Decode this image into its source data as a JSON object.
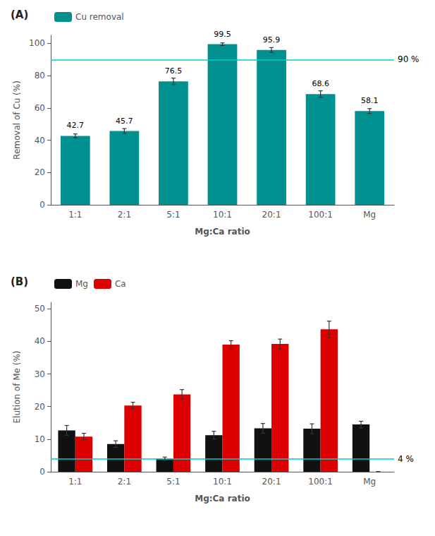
{
  "chart_data": [
    {
      "type": "bar",
      "title": "(A)",
      "categories": [
        "1:1",
        "2:1",
        "5:1",
        "10:1",
        "20:1",
        "100:1",
        "Mg"
      ],
      "series": [
        {
          "name": "Cu removal",
          "color": "#009090",
          "values": [
            42.7,
            45.7,
            76.5,
            99.5,
            95.9,
            68.6,
            58.1
          ],
          "errors": [
            1.2,
            1.5,
            2.0,
            0.8,
            1.5,
            2.0,
            1.5
          ]
        }
      ],
      "xlabel": "Mg:Ca ratio",
      "ylabel": "Removal of Cu (%)",
      "ylim": [
        0,
        105
      ],
      "yticks": [
        0,
        20,
        40,
        60,
        80,
        100
      ],
      "grid": false,
      "legend": "upper left",
      "data_labels": true,
      "annotations": [
        {
          "y": 90,
          "text": "90 %",
          "color": "#00CCCC"
        }
      ]
    },
    {
      "type": "bar",
      "title": "(B)",
      "categories": [
        "1:1",
        "2:1",
        "5:1",
        "10:1",
        "20:1",
        "100:1",
        "Mg"
      ],
      "series": [
        {
          "name": "Mg",
          "color": "#111111",
          "values": [
            12.7,
            8.5,
            4.0,
            11.2,
            13.3,
            13.2,
            14.5
          ],
          "errors": [
            1.5,
            1.0,
            0.5,
            1.2,
            1.5,
            1.5,
            1.0
          ]
        },
        {
          "name": "Ca",
          "color": "#DD0000",
          "values": [
            10.8,
            20.3,
            23.7,
            39.0,
            39.2,
            43.7,
            0.0
          ],
          "errors": [
            1.0,
            1.0,
            1.5,
            1.2,
            1.5,
            2.5,
            0.0
          ]
        }
      ],
      "xlabel": "Mg:Ca ratio",
      "ylabel": "Elution of Me (%)",
      "ylim": [
        0,
        52
      ],
      "yticks": [
        0,
        10,
        20,
        30,
        40,
        50
      ],
      "grid": false,
      "legend": "upper left",
      "data_labels": false,
      "annotations": [
        {
          "y": 4,
          "text": "4 %",
          "color": "#00CCCC"
        }
      ]
    }
  ]
}
